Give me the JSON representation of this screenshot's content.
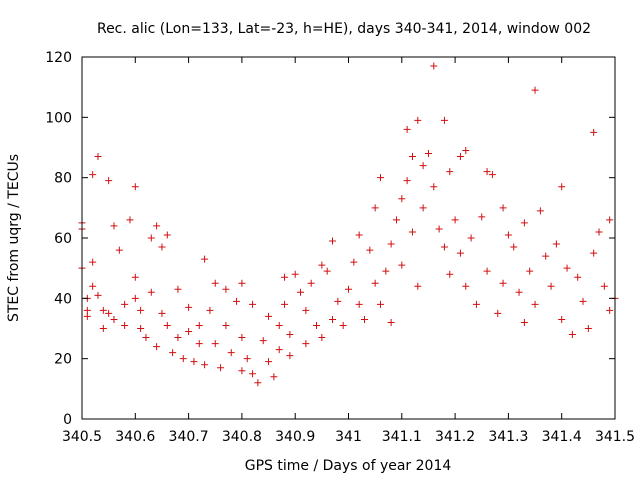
{
  "chart_data": {
    "type": "scatter",
    "title": "Rec. alic (Lon=133, Lat=-23, h=HE), days 340-341, 2014, window 002",
    "xlabel": "GPS time / Days of year 2014",
    "ylabel": "STEC from uqrg / TECUs",
    "xlim": [
      340.5,
      341.5
    ],
    "ylim": [
      0,
      120
    ],
    "xticks": [
      340.5,
      340.6,
      340.7,
      340.8,
      340.9,
      341,
      341.1,
      341.2,
      341.3,
      341.4,
      341.5
    ],
    "xtick_labels": [
      "340.5",
      "340.6",
      "340.7",
      "340.8",
      "340.9",
      "341",
      "341.1",
      "341.2",
      "341.3",
      "341.4",
      "341.5"
    ],
    "yticks": [
      0,
      20,
      40,
      60,
      80,
      100,
      120
    ],
    "ytick_labels": [
      "0",
      "20",
      "40",
      "60",
      "80",
      "100",
      "120"
    ],
    "grid": false,
    "legend": "none",
    "marker": "+",
    "color": "#d01010",
    "series": [
      {
        "points": [
          [
            340.5,
            65
          ],
          [
            340.5,
            63
          ],
          [
            340.5,
            50
          ],
          [
            340.51,
            40
          ],
          [
            340.51,
            36
          ],
          [
            340.51,
            34
          ],
          [
            340.52,
            81
          ],
          [
            340.52,
            52
          ],
          [
            340.52,
            44
          ],
          [
            340.53,
            87
          ],
          [
            340.53,
            41
          ],
          [
            340.54,
            36
          ],
          [
            340.54,
            30
          ],
          [
            340.55,
            79
          ],
          [
            340.55,
            35
          ],
          [
            340.56,
            64
          ],
          [
            340.56,
            33
          ],
          [
            340.57,
            56
          ],
          [
            340.58,
            38
          ],
          [
            340.58,
            31
          ],
          [
            340.59,
            66
          ],
          [
            340.6,
            77
          ],
          [
            340.6,
            47
          ],
          [
            340.6,
            40
          ],
          [
            340.61,
            36
          ],
          [
            340.61,
            30
          ],
          [
            340.62,
            27
          ],
          [
            340.63,
            60
          ],
          [
            340.63,
            42
          ],
          [
            340.64,
            64
          ],
          [
            340.64,
            24
          ],
          [
            340.65,
            57
          ],
          [
            340.65,
            35
          ],
          [
            340.66,
            61
          ],
          [
            340.66,
            31
          ],
          [
            340.67,
            22
          ],
          [
            340.68,
            43
          ],
          [
            340.68,
            27
          ],
          [
            340.69,
            20
          ],
          [
            340.7,
            37
          ],
          [
            340.7,
            29
          ],
          [
            340.71,
            19
          ],
          [
            340.72,
            31
          ],
          [
            340.72,
            25
          ],
          [
            340.73,
            53
          ],
          [
            340.73,
            18
          ],
          [
            340.74,
            36
          ],
          [
            340.75,
            45
          ],
          [
            340.75,
            25
          ],
          [
            340.76,
            17
          ],
          [
            340.77,
            43
          ],
          [
            340.77,
            31
          ],
          [
            340.78,
            22
          ],
          [
            340.79,
            39
          ],
          [
            340.8,
            45
          ],
          [
            340.8,
            27
          ],
          [
            340.8,
            16
          ],
          [
            340.81,
            20
          ],
          [
            340.82,
            38
          ],
          [
            340.82,
            15
          ],
          [
            340.83,
            12
          ],
          [
            340.84,
            26
          ],
          [
            340.85,
            34
          ],
          [
            340.85,
            19
          ],
          [
            340.86,
            14
          ],
          [
            340.87,
            31
          ],
          [
            340.87,
            23
          ],
          [
            340.88,
            47
          ],
          [
            340.88,
            38
          ],
          [
            340.89,
            28
          ],
          [
            340.89,
            21
          ],
          [
            340.9,
            48
          ],
          [
            340.91,
            42
          ],
          [
            340.92,
            36
          ],
          [
            340.92,
            25
          ],
          [
            340.93,
            45
          ],
          [
            340.94,
            31
          ],
          [
            340.95,
            51
          ],
          [
            340.95,
            27
          ],
          [
            340.96,
            49
          ],
          [
            340.97,
            59
          ],
          [
            340.97,
            33
          ],
          [
            340.98,
            39
          ],
          [
            340.99,
            31
          ],
          [
            341.0,
            43
          ],
          [
            341.01,
            52
          ],
          [
            341.02,
            61
          ],
          [
            341.02,
            38
          ],
          [
            341.03,
            33
          ],
          [
            341.04,
            56
          ],
          [
            341.05,
            70
          ],
          [
            341.05,
            45
          ],
          [
            341.06,
            80
          ],
          [
            341.06,
            38
          ],
          [
            341.07,
            49
          ],
          [
            341.08,
            58
          ],
          [
            341.08,
            32
          ],
          [
            341.09,
            66
          ],
          [
            341.1,
            73
          ],
          [
            341.1,
            51
          ],
          [
            341.11,
            96
          ],
          [
            341.11,
            79
          ],
          [
            341.12,
            87
          ],
          [
            341.12,
            62
          ],
          [
            341.13,
            99
          ],
          [
            341.13,
            44
          ],
          [
            341.14,
            84
          ],
          [
            341.14,
            70
          ],
          [
            341.15,
            88
          ],
          [
            341.16,
            117
          ],
          [
            341.16,
            77
          ],
          [
            341.17,
            63
          ],
          [
            341.18,
            99
          ],
          [
            341.18,
            57
          ],
          [
            341.19,
            82
          ],
          [
            341.19,
            48
          ],
          [
            341.2,
            66
          ],
          [
            341.21,
            87
          ],
          [
            341.21,
            55
          ],
          [
            341.22,
            89
          ],
          [
            341.22,
            44
          ],
          [
            341.23,
            60
          ],
          [
            341.24,
            38
          ],
          [
            341.25,
            67
          ],
          [
            341.26,
            82
          ],
          [
            341.26,
            49
          ],
          [
            341.27,
            81
          ],
          [
            341.28,
            35
          ],
          [
            341.29,
            70
          ],
          [
            341.29,
            45
          ],
          [
            341.3,
            61
          ],
          [
            341.31,
            57
          ],
          [
            341.32,
            42
          ],
          [
            341.33,
            65
          ],
          [
            341.33,
            32
          ],
          [
            341.34,
            49
          ],
          [
            341.35,
            109
          ],
          [
            341.35,
            38
          ],
          [
            341.36,
            69
          ],
          [
            341.37,
            54
          ],
          [
            341.38,
            44
          ],
          [
            341.39,
            58
          ],
          [
            341.4,
            77
          ],
          [
            341.4,
            33
          ],
          [
            341.41,
            50
          ],
          [
            341.42,
            28
          ],
          [
            341.43,
            47
          ],
          [
            341.44,
            39
          ],
          [
            341.45,
            30
          ],
          [
            341.46,
            95
          ],
          [
            341.46,
            55
          ],
          [
            341.47,
            62
          ],
          [
            341.48,
            44
          ],
          [
            341.49,
            66
          ],
          [
            341.49,
            36
          ],
          [
            341.5,
            40
          ]
        ]
      }
    ]
  }
}
